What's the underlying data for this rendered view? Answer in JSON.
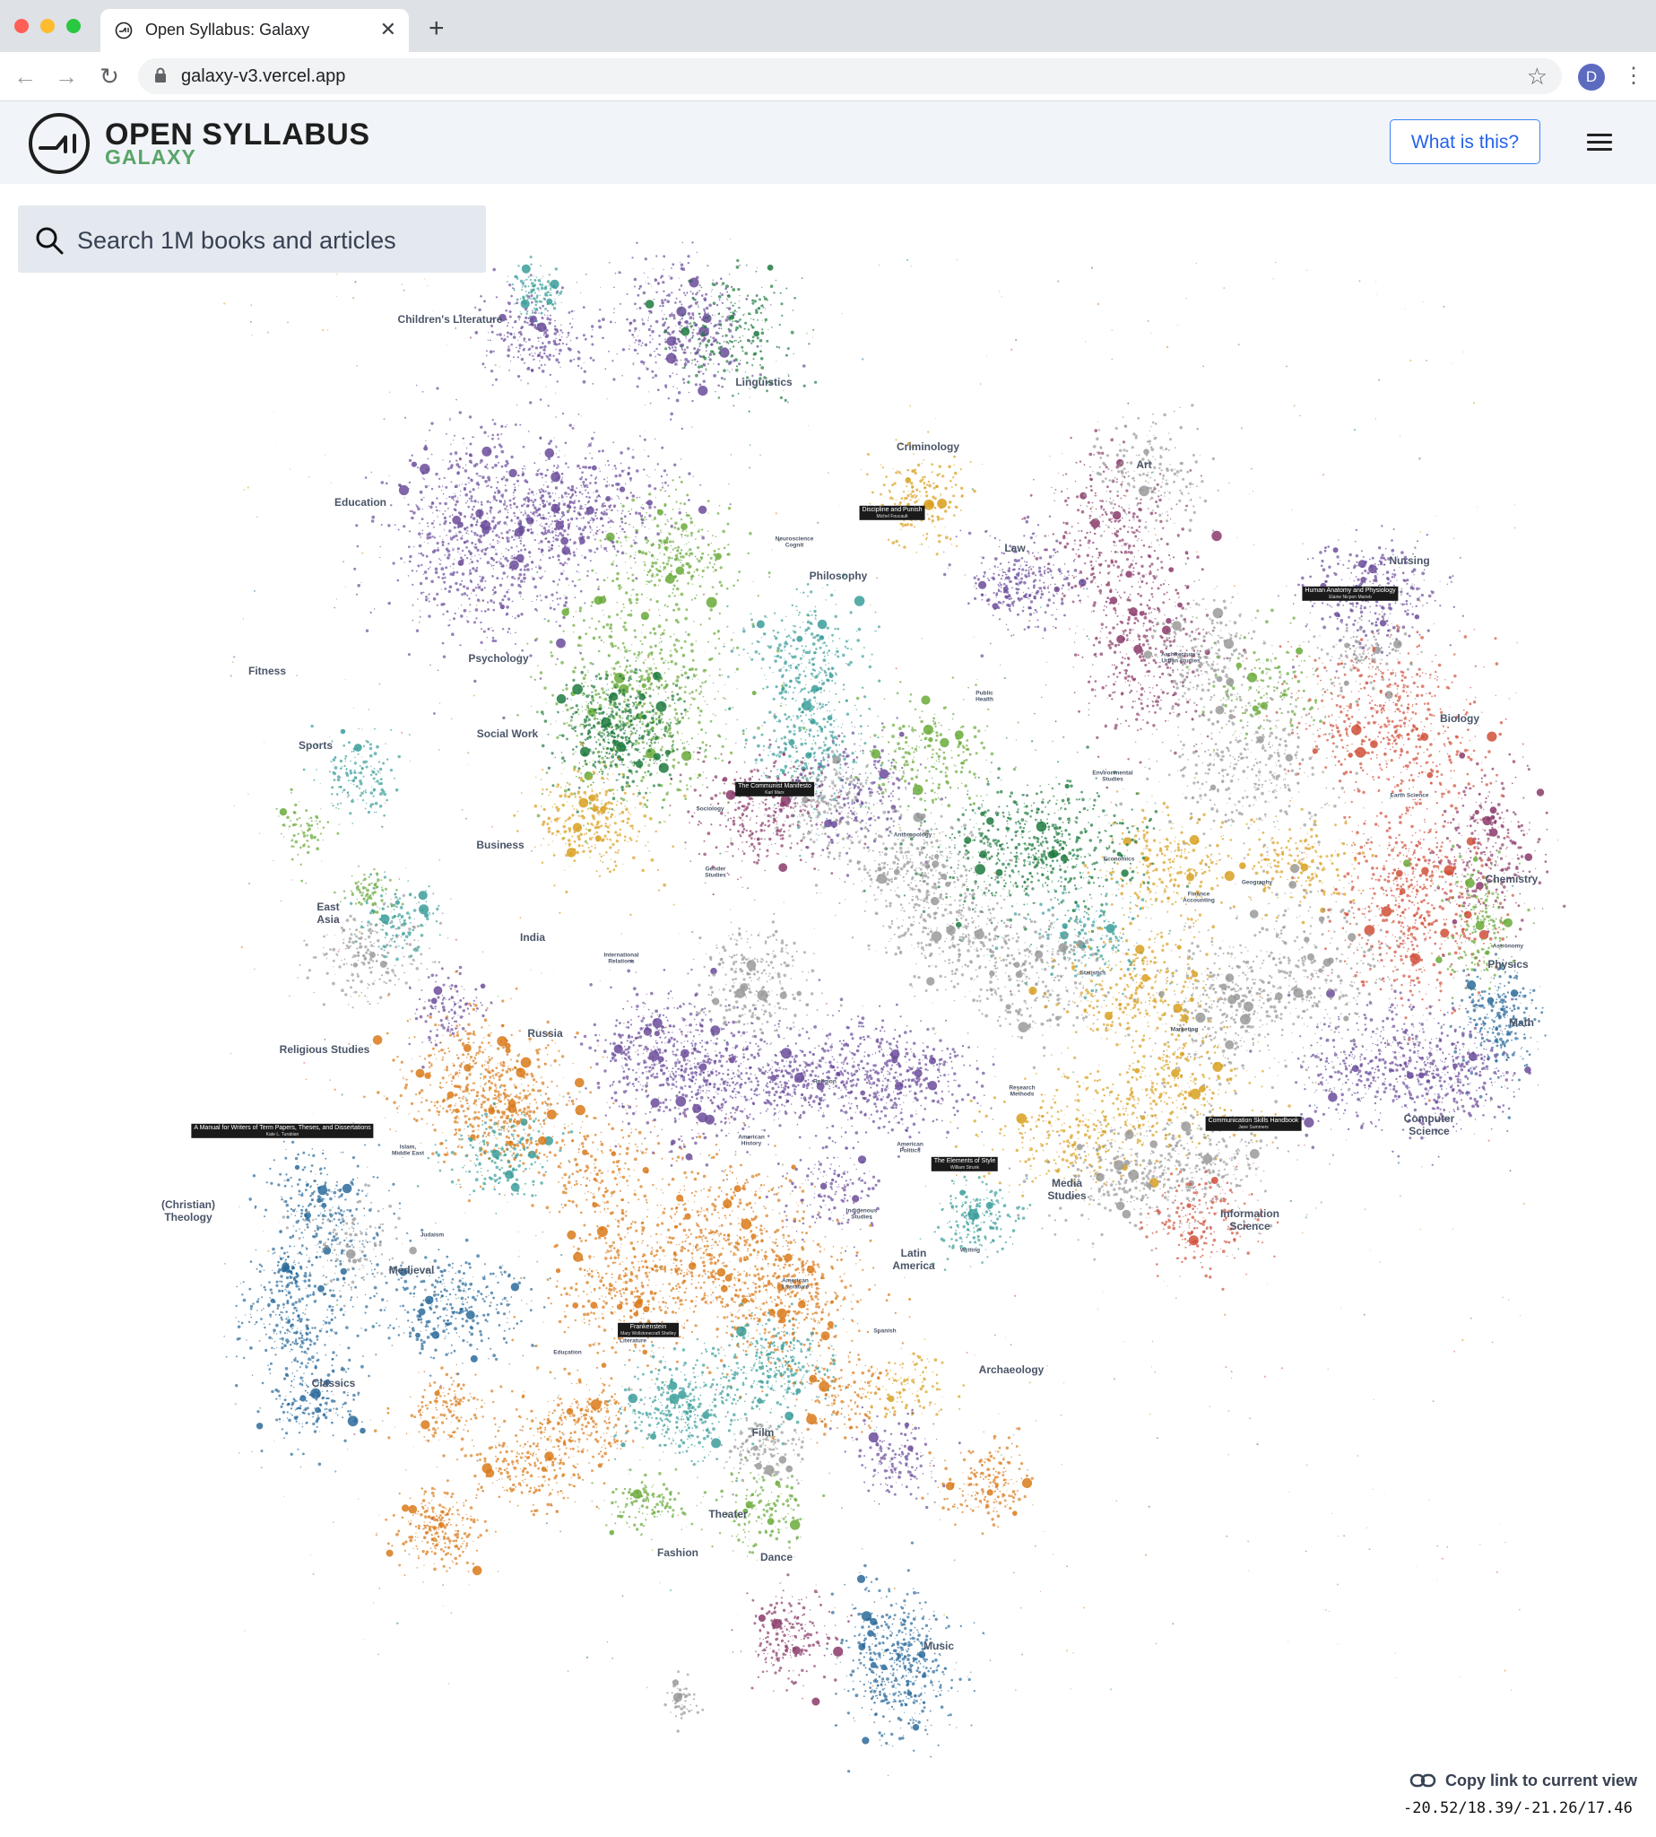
{
  "browser": {
    "tab_title": "Open Syllabus: Galaxy",
    "url": "galaxy-v3.vercel.app",
    "profile_initial": "D"
  },
  "header": {
    "logo_title": "OPEN SYLLABUS",
    "logo_subtitle": "GALAXY",
    "what_button": "What is this?"
  },
  "search": {
    "placeholder": "Search 1M books and articles"
  },
  "colors": {
    "purple": "#6b4c9a",
    "green": "#1f7a3f",
    "light_green": "#6aaa3a",
    "teal": "#3a9e9a",
    "orange": "#d97a1a",
    "gold": "#d8a020",
    "magenta": "#8a3a6a",
    "red": "#d0503a",
    "blue": "#2a6a9a",
    "gray": "#9a9a9a"
  },
  "map": {
    "major_labels": [
      {
        "text": "Children's Literature"
      },
      {
        "text": "Linguistics"
      },
      {
        "text": "Criminology"
      },
      {
        "text": "Art"
      },
      {
        "text": "Education"
      },
      {
        "text": "Law"
      },
      {
        "text": "Nursing"
      },
      {
        "text": "Philosophy"
      },
      {
        "text": "Psychology"
      },
      {
        "text": "Biology"
      },
      {
        "text": "Fitness"
      },
      {
        "text": "Sports"
      },
      {
        "text": "Social Work"
      },
      {
        "text": "Business"
      },
      {
        "text": "Chemistry"
      },
      {
        "text": "East\nAsia"
      },
      {
        "text": "Physics"
      },
      {
        "text": "Math"
      },
      {
        "text": "Religious Studies"
      },
      {
        "text": "Russia"
      },
      {
        "text": "Computer\nScience"
      },
      {
        "text": "(Christian)\nTheology"
      },
      {
        "text": "Information\nScience"
      },
      {
        "text": "Media\nStudies"
      },
      {
        "text": "Latin\nAmerica"
      },
      {
        "text": "Medieval"
      },
      {
        "text": "Archaeology"
      },
      {
        "text": "Classics"
      },
      {
        "text": "Film"
      },
      {
        "text": "Theater"
      },
      {
        "text": "Fashion"
      },
      {
        "text": "Dance"
      },
      {
        "text": "Music"
      },
      {
        "text": "India"
      }
    ],
    "minor_labels": [
      {
        "text": "Neuroscience\nCognit"
      },
      {
        "text": "Architecture +\nUrban studies"
      },
      {
        "text": "Public\nHealth"
      },
      {
        "text": "Environmental\nStudies"
      },
      {
        "text": "Earth Science"
      },
      {
        "text": "Sociology"
      },
      {
        "text": "Gender\nStudies"
      },
      {
        "text": "Anthropology"
      },
      {
        "text": "Economics"
      },
      {
        "text": "Geography"
      },
      {
        "text": "Finance\nAccounting"
      },
      {
        "text": "International\nRelations"
      },
      {
        "text": "Statistics"
      },
      {
        "text": "Astronomy"
      },
      {
        "text": "Marketing"
      },
      {
        "text": "Religion"
      },
      {
        "text": "Research\nMethods"
      },
      {
        "text": "American\nPolitics"
      },
      {
        "text": "American\nHistory"
      },
      {
        "text": "Islam,\nMiddle East"
      },
      {
        "text": "Judaism"
      },
      {
        "text": "Indigenous\nStudies"
      },
      {
        "text": "Writing"
      },
      {
        "text": "American\nLiterature"
      },
      {
        "text": "Spanish"
      },
      {
        "text": "British\nLiterature"
      },
      {
        "text": "Education"
      }
    ],
    "book_labels": [
      {
        "title": "Discipline and Punish",
        "author": "Michel Foucault"
      },
      {
        "title": "Human Anatomy and Physiology",
        "author": "Elaine Nicpon Marieb"
      },
      {
        "title": "The Communist Manifesto",
        "author": "Karl Marx"
      },
      {
        "title": "A Manual for Writers of Term Papers, Theses, and Dissertations",
        "author": "Kate L. Turabian"
      },
      {
        "title": "Communication Skills Handbook",
        "author": "Jane Summers"
      },
      {
        "title": "The Elements of Style",
        "author": "William Strunk"
      },
      {
        "title": "Frankenstein",
        "author": "Mary Wollstonecraft Shelley"
      }
    ]
  },
  "footer": {
    "copy_link": "Copy link to current view",
    "coordinates": "-20.52/18.39/-21.26/17.46"
  }
}
